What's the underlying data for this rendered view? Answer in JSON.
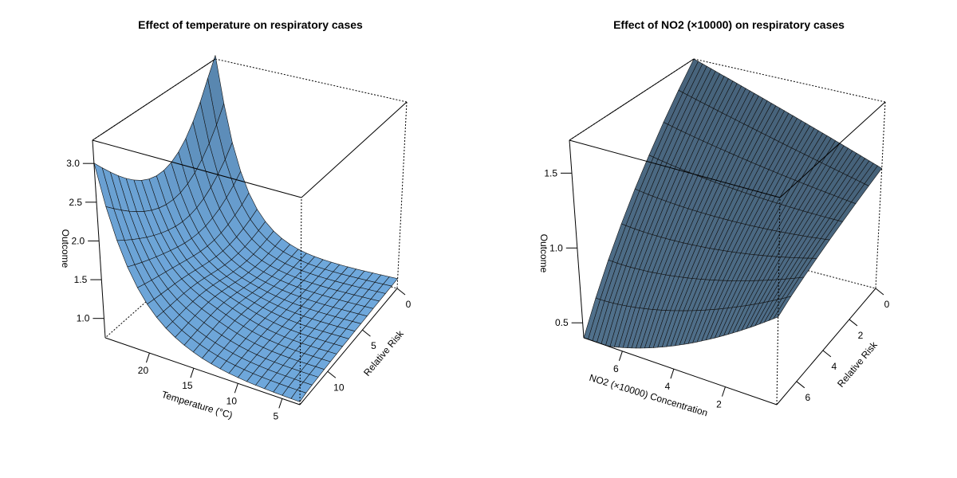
{
  "chart_data": [
    {
      "type": "surface3d",
      "title": "Effect of temperature on respiratory cases",
      "xlabel": "Temperature (°C)",
      "ylabel": "Relative Risk",
      "zlabel": "Outcome",
      "x_ticks": [
        "20",
        "15",
        "10",
        "5"
      ],
      "y_ticks": [
        "0",
        "5",
        "10"
      ],
      "z_ticks": [
        "1.0",
        "1.5",
        "2.0",
        "2.5",
        "3.0"
      ],
      "xlim": [
        3,
        25
      ],
      "ylim": [
        0,
        14
      ],
      "zlim": [
        0.75,
        3.3
      ],
      "surface_color": "#6fa8dc",
      "corner_values": {
        "temp_max_lag_min": 3.0,
        "temp_min_lag_min": 3.3,
        "temp_max_lag_max": 0.78,
        "temp_min_lag_max": 0.95
      }
    },
    {
      "type": "surface3d",
      "title": "Effect of NO2 (×10000) on respiratory cases",
      "xlabel": "NO2 (×10000) Concentration",
      "ylabel": "Relative Risk",
      "zlabel": "Outcome",
      "x_ticks": [
        "6",
        "4",
        "2"
      ],
      "y_ticks": [
        "0",
        "2",
        "4",
        "6"
      ],
      "z_ticks": [
        "0.5",
        "1.0",
        "1.5"
      ],
      "xlim": [
        0,
        7.5
      ],
      "ylim": [
        0,
        7.5
      ],
      "zlim": [
        0.4,
        1.72
      ],
      "surface_color": "#5b7f9e",
      "corner_values": {
        "no2_max_lag_min": 0.38,
        "no2_min_lag_min": 1.72,
        "no2_max_lag_max": 0.96,
        "no2_min_lag_max": 1.25
      }
    }
  ]
}
